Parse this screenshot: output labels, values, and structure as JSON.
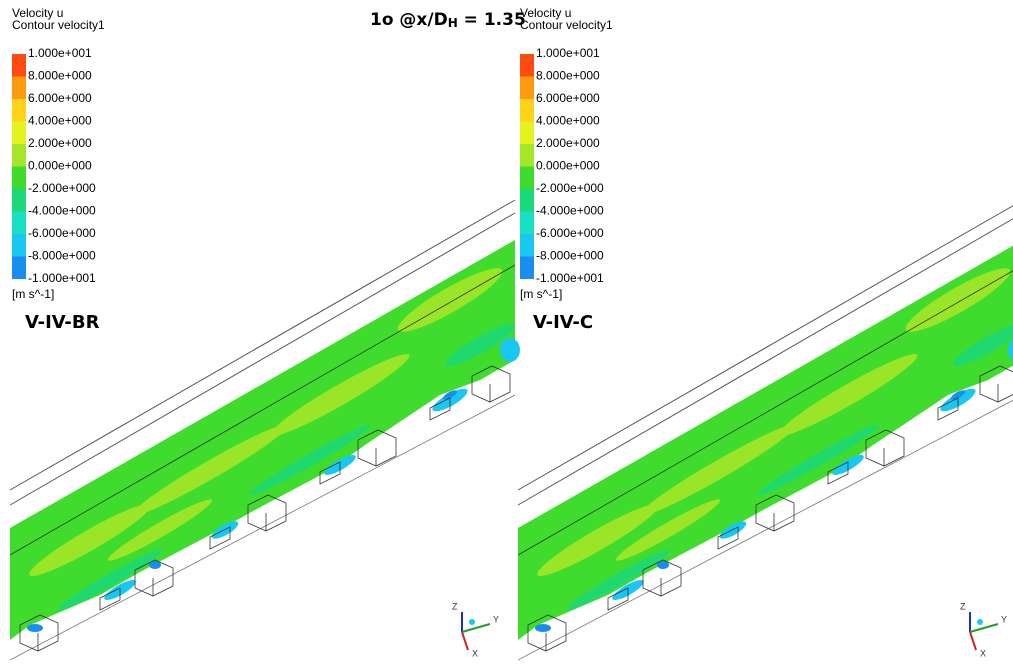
{
  "title": {
    "main": "1o @x/D",
    "subscript": "H",
    "tail": " = 1.35"
  },
  "panels": [
    {
      "legend_title": "Velocity u",
      "legend_subtitle": "Contour velocity1",
      "unit": "[m s^-1]",
      "label": "V-IV-BR",
      "levels": [
        "1.000e+001",
        "8.000e+000",
        "6.000e+000",
        "4.000e+000",
        "2.000e+000",
        "0.000e+000",
        "-2.000e+000",
        "-4.000e+000",
        "-6.000e+000",
        "-8.000e+000",
        "-1.000e+001"
      ]
    },
    {
      "legend_title": "Velocity u",
      "legend_subtitle": "Contour velocity1",
      "unit": "[m s^-1]",
      "label": "V-IV-C",
      "levels": [
        "1.000e+001",
        "8.000e+000",
        "6.000e+000",
        "4.000e+000",
        "2.000e+000",
        "0.000e+000",
        "-2.000e+000",
        "-4.000e+000",
        "-6.000e+000",
        "-8.000e+000",
        "-1.000e+001"
      ]
    }
  ],
  "legend_colors": [
    "#ff4a12",
    "#ff9a10",
    "#ffd21a",
    "#e4f21e",
    "#a6e62a",
    "#3fdc2e",
    "#1bd97a",
    "#17e0c4",
    "#18c8f2",
    "#1a8ef0",
    "#1448e8"
  ],
  "axes_labels": {
    "z": "Z",
    "y": "Y",
    "x": "X"
  }
}
